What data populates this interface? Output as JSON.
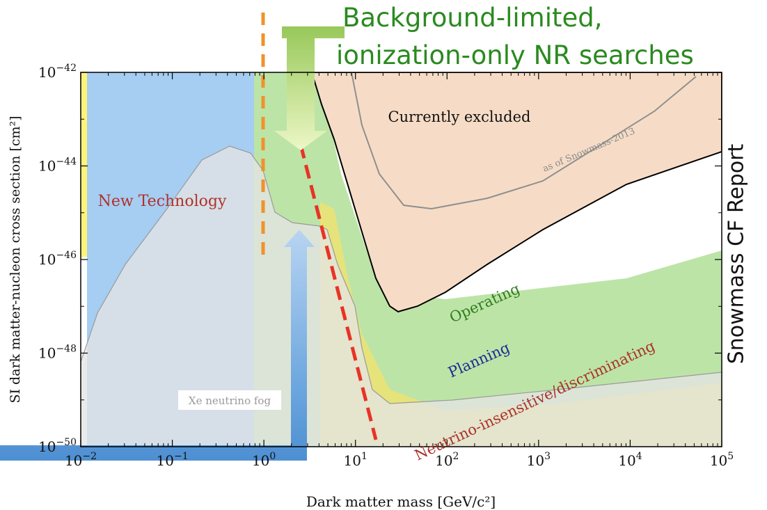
{
  "heading": {
    "line1": "Background-limited,",
    "line2": "ionization-only NR searches"
  },
  "side_label": "Snowmass CF Report",
  "chart_data": {
    "type": "area",
    "xlabel": "Dark matter mass [GeV/c²]",
    "ylabel": "SI dark matter-nucleon cross section [cm²]",
    "x_scale": "log",
    "y_scale": "log",
    "xlim": [
      0.01,
      100000
    ],
    "ylim": [
      1e-50,
      1e-42
    ],
    "x_ticks": [
      {
        "value": 0.01,
        "base": "10",
        "exp": "−2"
      },
      {
        "value": 0.1,
        "base": "10",
        "exp": "−1"
      },
      {
        "value": 1,
        "base": "10",
        "exp": "0"
      },
      {
        "value": 10,
        "base": "10",
        "exp": "1"
      },
      {
        "value": 100,
        "base": "10",
        "exp": "2"
      },
      {
        "value": 1000,
        "base": "10",
        "exp": "3"
      },
      {
        "value": 10000,
        "base": "10",
        "exp": "4"
      },
      {
        "value": 100000,
        "base": "10",
        "exp": "5"
      }
    ],
    "y_ticks": [
      {
        "value": 1e-50,
        "base": "10",
        "exp": "−50"
      },
      {
        "value": 1e-48,
        "base": "10",
        "exp": "−48"
      },
      {
        "value": 1e-46,
        "base": "10",
        "exp": "−46"
      },
      {
        "value": 1e-44,
        "base": "10",
        "exp": "−44"
      },
      {
        "value": 1e-42,
        "base": "10",
        "exp": "−42"
      }
    ],
    "regions": [
      {
        "name": "New Technology",
        "color": "#fff37a",
        "boundary": [
          [
            0.01,
            1e-42
          ],
          [
            0.04,
            1e-42
          ],
          [
            0.05,
            3e-44
          ],
          [
            0.1,
            1.3e-44
          ],
          [
            0.3,
            1.3e-44
          ],
          [
            1,
            1.4e-44
          ],
          [
            1.3,
            7e-45
          ],
          [
            2,
            4.5e-45
          ],
          [
            3,
            4.7e-45
          ],
          [
            5,
            5e-45
          ],
          [
            6,
            2.3e-45
          ],
          [
            10,
            2e-45
          ],
          [
            0.01,
            2e-45
          ]
        ]
      },
      {
        "name": "Planning",
        "color": "#a6cdf2",
        "boundary": [
          [
            0.02,
            1e-42
          ],
          [
            1,
            1e-42
          ],
          [
            3,
            5e-44
          ],
          [
            5,
            1e-45
          ],
          [
            8,
            3e-47
          ],
          [
            12,
            5e-48
          ],
          [
            20,
            2.5e-48
          ],
          [
            100,
            3e-48
          ],
          [
            1000,
            4.5e-48
          ],
          [
            10000,
            7e-48
          ],
          [
            100000,
            1.2e-47
          ]
        ]
      },
      {
        "name": "Operating",
        "color": "#bde4a7",
        "boundary": [
          [
            0.7,
            1e-42
          ],
          [
            3,
            1e-43
          ],
          [
            5,
            5e-45
          ],
          [
            8,
            2e-46
          ],
          [
            12,
            3e-47
          ],
          [
            20,
            1.5e-47
          ],
          [
            100,
            1.6e-47
          ],
          [
            1000,
            2e-47
          ],
          [
            10000,
            4e-47
          ],
          [
            100000,
            9e-47
          ]
        ]
      },
      {
        "name": "Neutrino-insensitive/discriminating",
        "color": "#e6e37b",
        "boundary": [
          [
            3,
            5e-46
          ],
          [
            5,
            3e-46
          ],
          [
            8,
            1e-48
          ],
          [
            12,
            3e-49
          ],
          [
            20,
            8e-50
          ],
          [
            100,
            1.5e-49
          ],
          [
            1000,
            3e-49
          ],
          [
            10000,
            6e-49
          ],
          [
            100000,
            1.3e-48
          ]
        ]
      },
      {
        "name": "Xe neutrino fog",
        "color": "#e4e4e4",
        "boundary": [
          [
            0.01,
            7e-49
          ],
          [
            0.05,
            1e-47
          ],
          [
            0.2,
            3e-46
          ],
          [
            1,
            1.3e-45
          ],
          [
            1.5,
            8e-46
          ],
          [
            3,
            7e-46
          ],
          [
            5,
            1.2e-46
          ],
          [
            8,
            4e-48
          ],
          [
            12,
            5e-49
          ],
          [
            30,
            1.5e-49
          ],
          [
            1000,
            3e-49
          ],
          [
            100000,
            1e-48
          ]
        ]
      },
      {
        "name": "Currently excluded",
        "color": "#f6dcc6",
        "boundary": [
          [
            5,
            1e-42
          ],
          [
            7,
            1e-43
          ],
          [
            10,
            3e-45
          ],
          [
            15,
            1.5e-46
          ],
          [
            20,
            2.5e-47
          ],
          [
            30,
            8e-48
          ],
          [
            50,
            1e-47
          ],
          [
            100,
            4e-47
          ],
          [
            1000,
            1.5e-46
          ],
          [
            10000,
            7e-46
          ],
          [
            100000,
            2e-45
          ]
        ]
      }
    ],
    "snowmass_2013_curve": {
      "label": "as of Snowmass-2013",
      "points": [
        [
          10,
          1e-42
        ],
        [
          20,
          6e-44
        ],
        [
          40,
          5e-45
        ],
        [
          80,
          2e-45
        ],
        [
          200,
          3e-45
        ],
        [
          1000,
          6e-45
        ],
        [
          10000,
          5e-44
        ],
        [
          60000,
          1e-42
        ]
      ]
    },
    "vertical_marker_x": 1,
    "dashed_trend_line": [
      [
        2.6,
        1.8e-44
      ],
      [
        17,
        2e-50
      ]
    ],
    "annotations": {
      "currently_excluded": "Currently excluded",
      "snowmass": "as of Snowmass-2013",
      "new_technology": "New Technology",
      "operating": "Operating",
      "planning": "Planning",
      "neutrino": "Neutrino-insensitive/discriminating",
      "fog": "Xe neutrino fog"
    },
    "colors": {
      "new_technology": "#fff37a",
      "planning": "#a6cdf2",
      "operating": "#bde4a7",
      "neutrino_insensitive": "#e6e37b",
      "fog": "#e4e4e4",
      "excluded": "#f6dcc6",
      "excluded_outline": "#000000",
      "orange_marker": "#f0922b",
      "red_line": "#e83325",
      "green_arrow": "#a5cf6a",
      "blue_arrow": "#5b9bd9"
    }
  }
}
